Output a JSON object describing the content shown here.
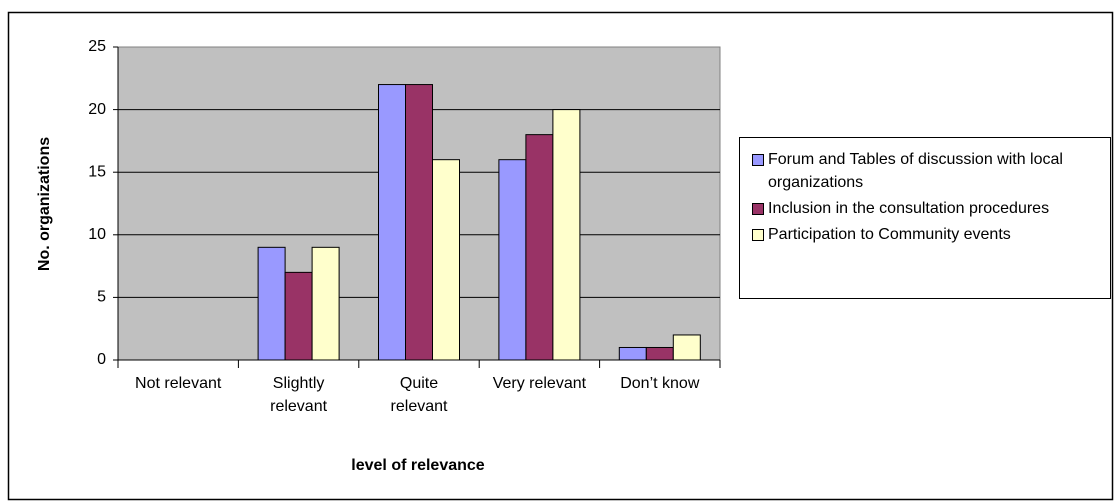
{
  "chart_data": {
    "type": "bar",
    "categories": [
      "Not relevant",
      "Slightly relevant",
      "Quite relevant",
      "Very relevant",
      "Don’t know"
    ],
    "series": [
      {
        "name": "Forum and Tables of discussion with local organizations",
        "color": "#9999ff",
        "values": [
          0,
          9,
          22,
          16,
          1
        ]
      },
      {
        "name": "Inclusion in the consultation procedures",
        "color": "#993366",
        "values": [
          0,
          7,
          22,
          18,
          1
        ]
      },
      {
        "name": "Participation to Community events",
        "color": "#ffffcc",
        "values": [
          0,
          9,
          16,
          20,
          2
        ]
      }
    ],
    "xlabel": "level of relevance",
    "ylabel": "No. organizations",
    "ylim": [
      0,
      25
    ],
    "yticks": [
      0,
      5,
      10,
      15,
      20,
      25
    ],
    "grid": true,
    "legend": "right"
  }
}
